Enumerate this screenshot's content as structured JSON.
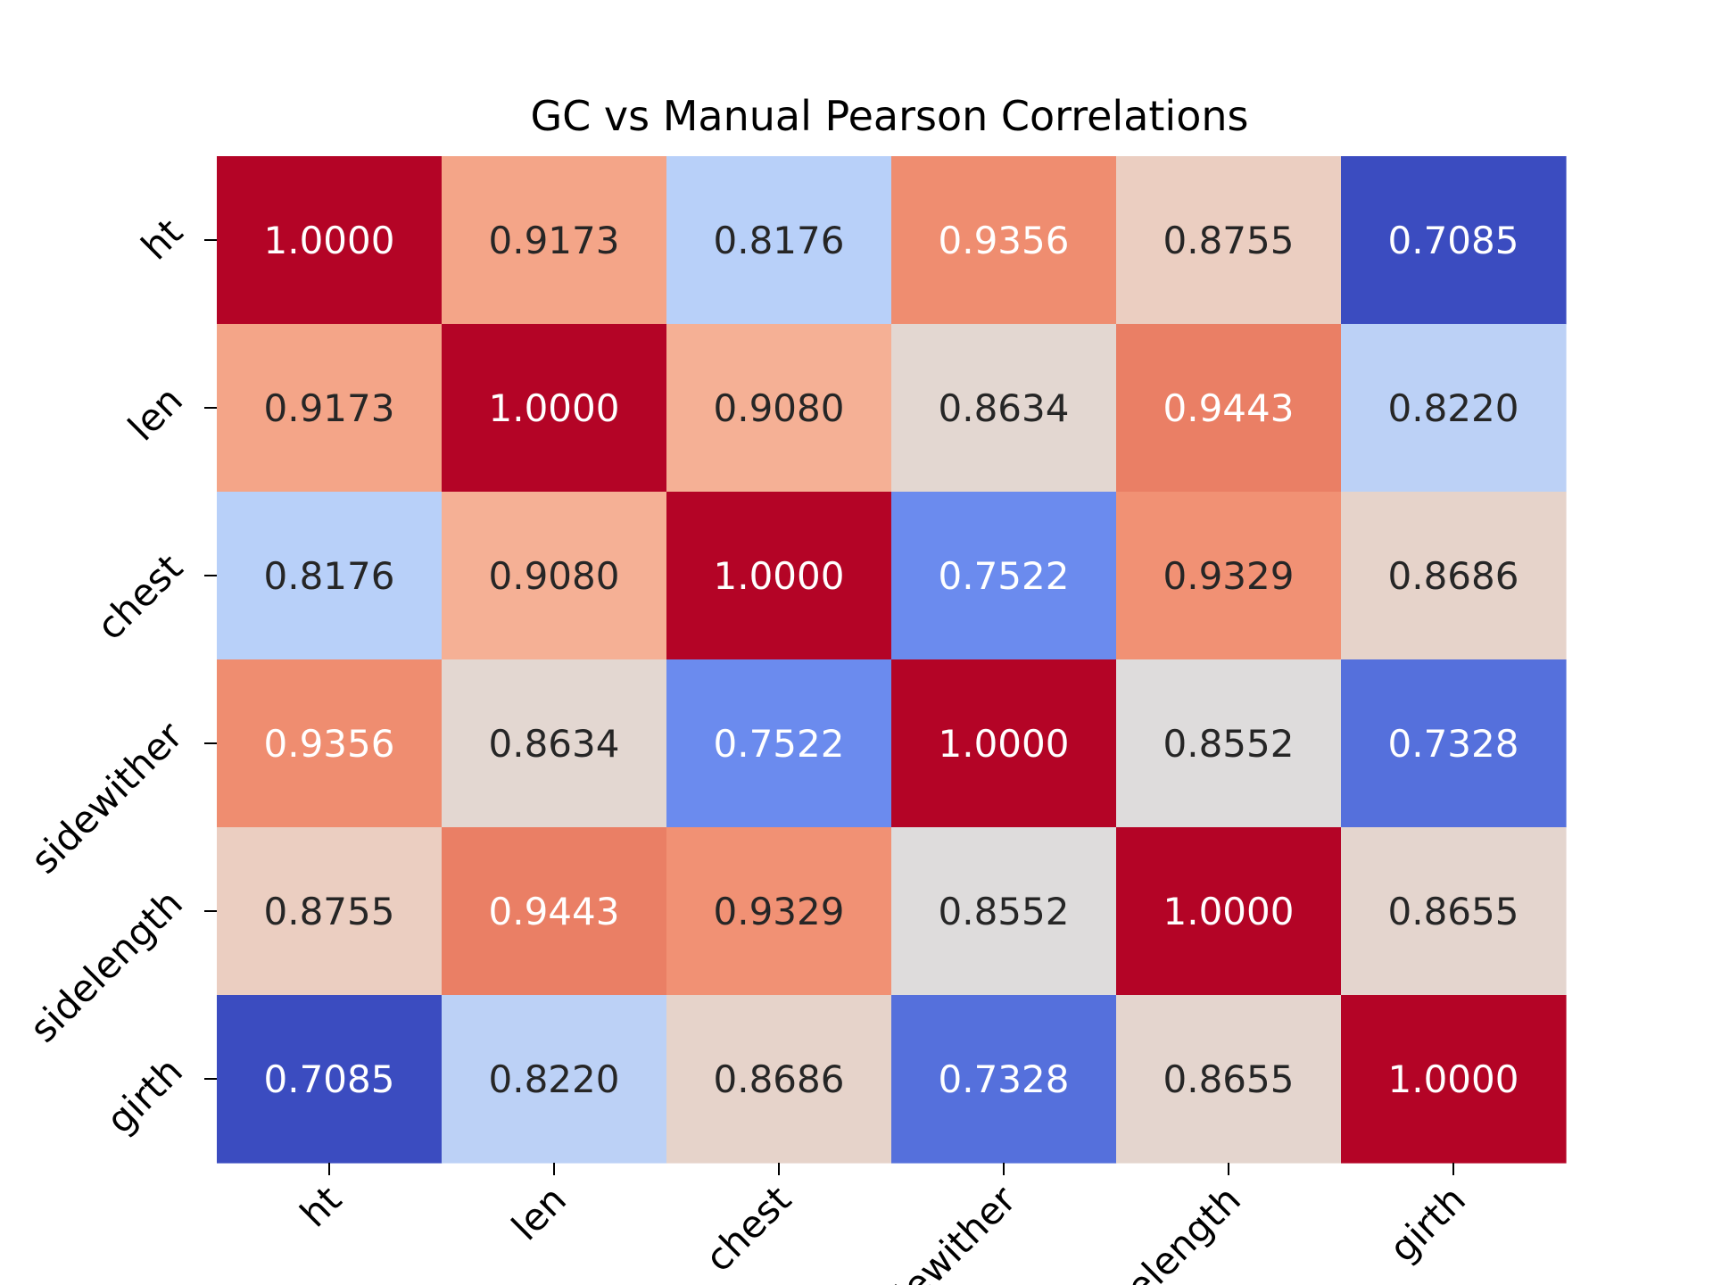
{
  "chart_data": {
    "type": "heatmap",
    "title": "GC vs Manual Pearson Correlations",
    "row_labels": [
      "ht",
      "len",
      "chest",
      "sidewither",
      "sidelength",
      "girth"
    ],
    "col_labels": [
      "ht",
      "len",
      "chest",
      "sidewither",
      "sidelength",
      "girth"
    ],
    "values": [
      [
        1.0,
        0.9173,
        0.8176,
        0.9356,
        0.8755,
        0.7085
      ],
      [
        0.9173,
        1.0,
        0.908,
        0.8634,
        0.9443,
        0.822
      ],
      [
        0.8176,
        0.908,
        1.0,
        0.7522,
        0.9329,
        0.8686
      ],
      [
        0.9356,
        0.8634,
        0.7522,
        1.0,
        0.8552,
        0.7328
      ],
      [
        0.8755,
        0.9443,
        0.9329,
        0.8552,
        1.0,
        0.8655
      ],
      [
        0.7085,
        0.822,
        0.8686,
        0.7328,
        0.8655,
        1.0
      ]
    ],
    "value_format": "4 decimals",
    "colormap": "coolwarm",
    "color_range": [
      0.7085,
      1.0
    ],
    "colorbar": false,
    "grid": false
  }
}
